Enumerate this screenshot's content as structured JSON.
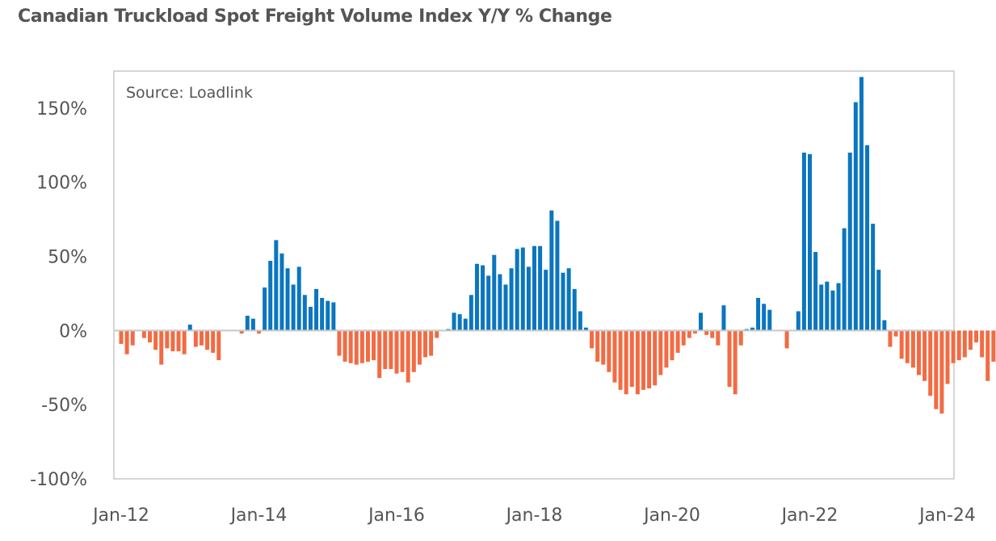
{
  "chart_data": {
    "type": "bar",
    "title": "Canadian Truckload Spot Freight Volume Index Y/Y % Change",
    "annotation": "Source: Loadlink",
    "xlabel": "",
    "ylabel": "",
    "ylim": [
      -100,
      175
    ],
    "yticks": [
      {
        "value": 150,
        "label": "150%"
      },
      {
        "value": 100,
        "label": "100%"
      },
      {
        "value": 50,
        "label": "50%"
      },
      {
        "value": 0,
        "label": "0%"
      },
      {
        "value": -50,
        "label": "-50%"
      },
      {
        "value": -100,
        "label": "-100%"
      }
    ],
    "xticks": [
      "Jan-12",
      "Jan-14",
      "Jan-16",
      "Jan-18",
      "Jan-20",
      "Jan-22",
      "Jan-24"
    ],
    "grid": false,
    "colors": {
      "positive": "#0a76bf",
      "negative": "#f26b43",
      "axis": "#c8c8c8",
      "text": "#555555"
    },
    "series": [
      {
        "start": "2012-01",
        "values": [
          -9,
          -16,
          -10,
          0,
          -5,
          -8,
          -13,
          -23,
          -12,
          -14,
          -14,
          -16,
          4,
          -11,
          -10,
          -13,
          -15,
          -20,
          0,
          0,
          0,
          -2,
          10,
          8,
          -2,
          29,
          47,
          61,
          52,
          42,
          31,
          43,
          24,
          16,
          28,
          22,
          20,
          19,
          -17,
          -21,
          -22,
          -23,
          -22,
          -21,
          -20,
          -32,
          -26,
          -26,
          -29,
          -28,
          -35,
          -28,
          -23,
          -18,
          -17,
          -5,
          0,
          1,
          12,
          11,
          8,
          24,
          45,
          44,
          37,
          51,
          38,
          31,
          42,
          55,
          56,
          43,
          57,
          57,
          41,
          81,
          74,
          39,
          42,
          28,
          13,
          2,
          -12,
          -21,
          -23,
          -28,
          -35,
          -40,
          -43,
          -38,
          -43,
          -40,
          -39,
          -37,
          -30,
          -25,
          -20,
          -15,
          -10,
          -5,
          -2,
          12,
          -3,
          -5,
          -10,
          17,
          -38,
          -43,
          -10,
          1,
          2,
          22,
          18,
          14,
          0,
          0,
          -12,
          0,
          13,
          120,
          119,
          53,
          31,
          33,
          27,
          32,
          69,
          120,
          154,
          171,
          125,
          72,
          41,
          7,
          -11,
          -4,
          -19,
          -22,
          -25,
          -30,
          -34,
          -44,
          -53,
          -56,
          -36,
          -22,
          -20,
          -18,
          -13,
          -8,
          -18,
          -34,
          -21
        ]
      }
    ]
  }
}
